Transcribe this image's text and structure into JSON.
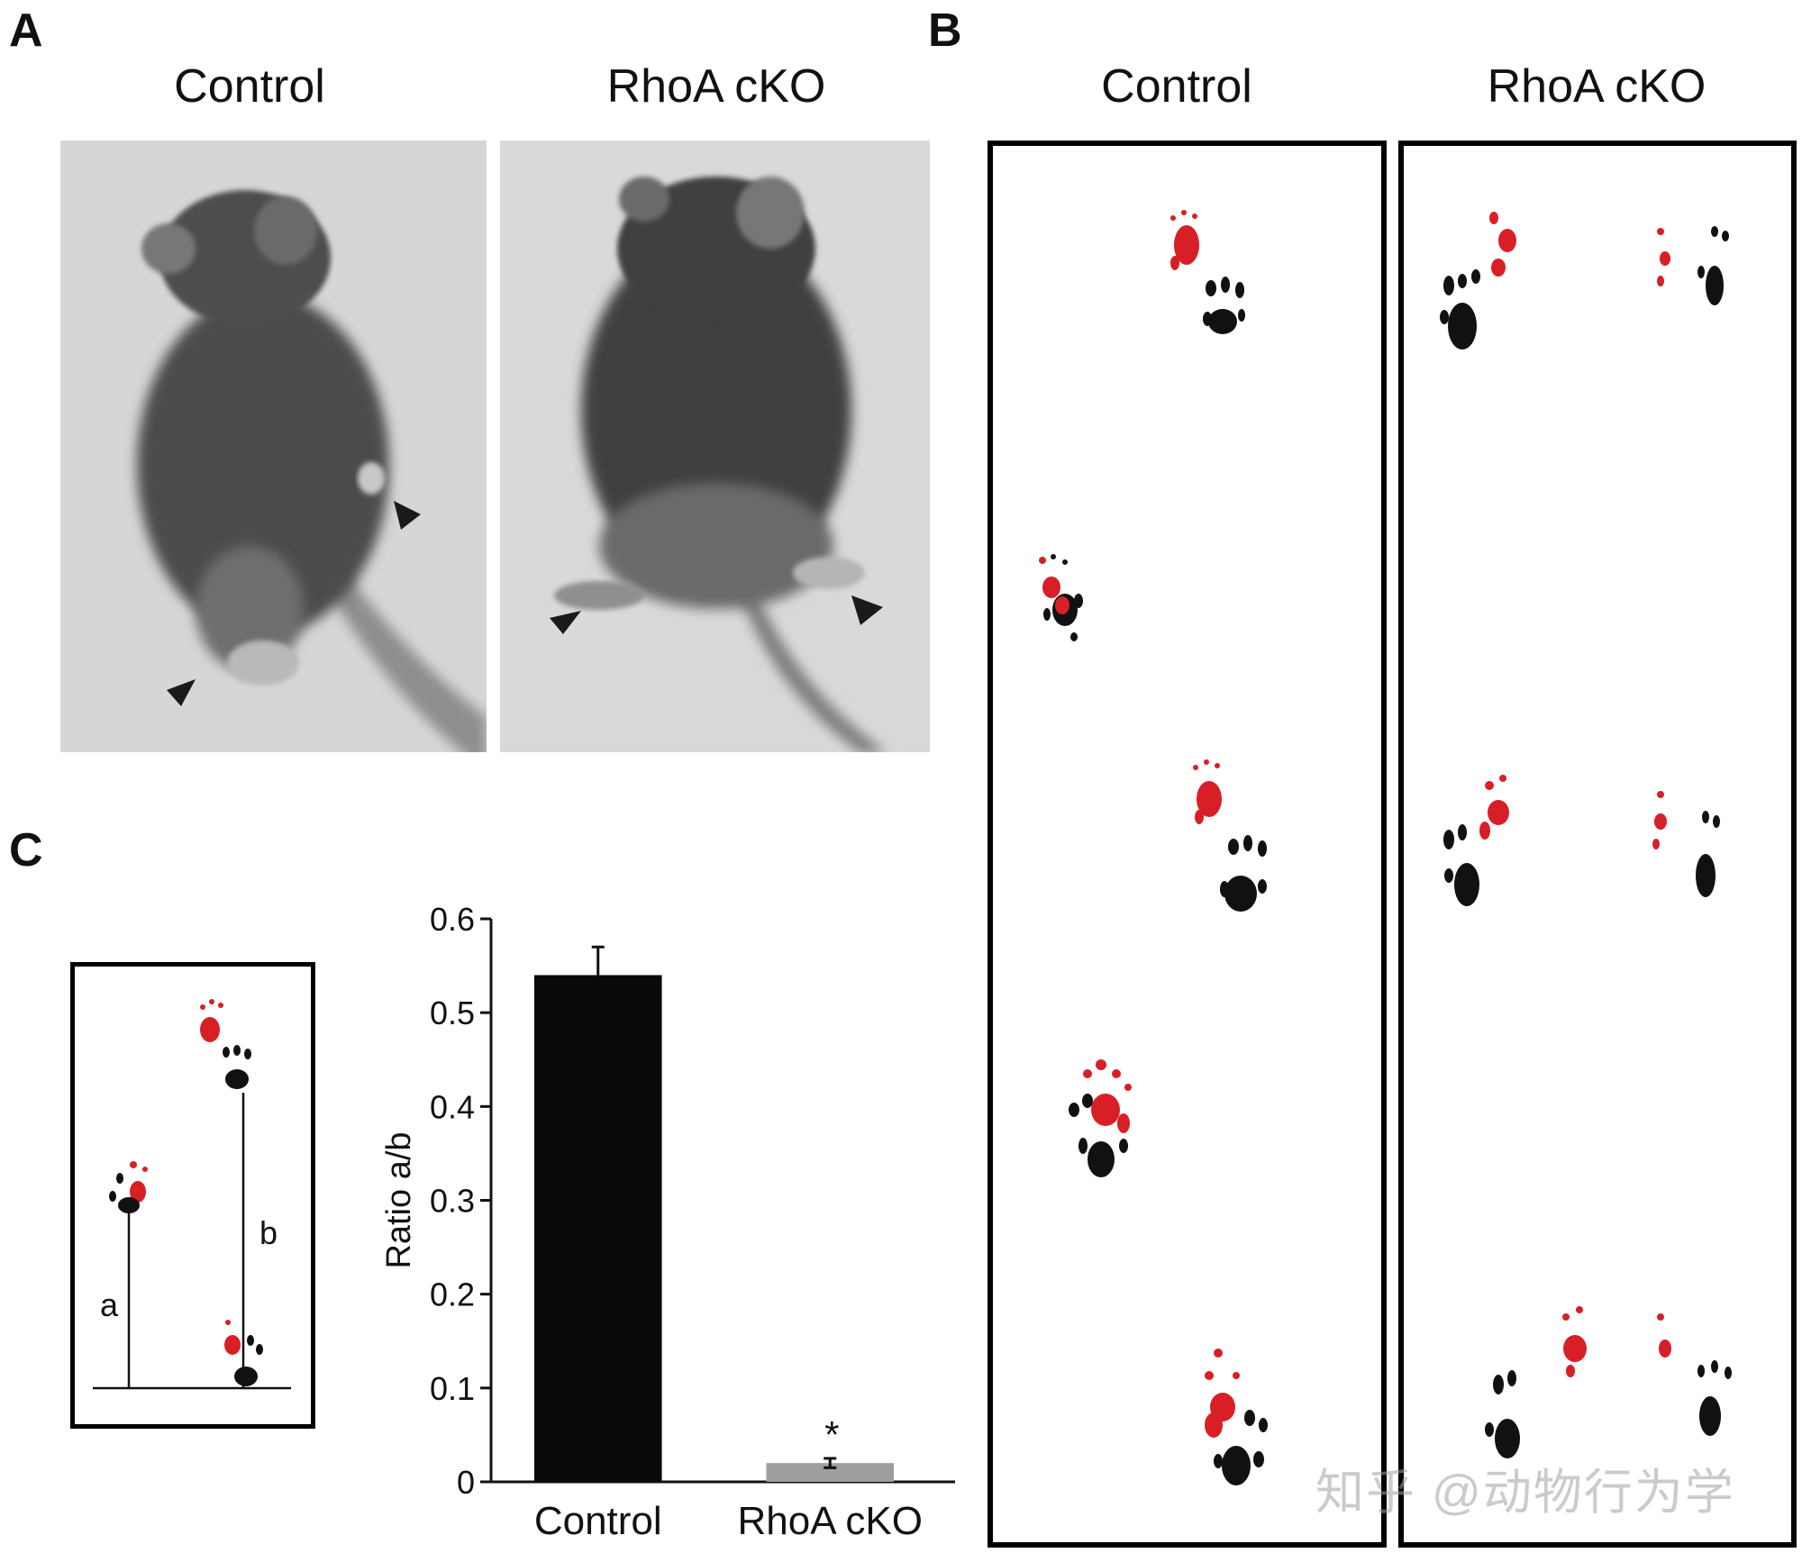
{
  "panels": {
    "A": {
      "letter": "A",
      "photos": [
        {
          "title": "Control"
        },
        {
          "title": "RhoA cKO"
        }
      ]
    },
    "B": {
      "letter": "B",
      "strips": [
        {
          "title": "Control"
        },
        {
          "title": "RhoA cKO"
        }
      ]
    },
    "C": {
      "letter": "C",
      "diagram": {
        "label_a": "a",
        "label_b": "b"
      }
    }
  },
  "chart_data": {
    "type": "bar",
    "categories": [
      "Control",
      "RhoA cKO"
    ],
    "values": [
      0.54,
      0.02
    ],
    "errors": [
      0.03,
      0.005
    ],
    "colors": [
      "#0a0a0a",
      "#9e9e9e"
    ],
    "annotations": [
      {
        "category": "RhoA cKO",
        "text": "*"
      }
    ],
    "ylabel": "Ratio a/b",
    "ylim": [
      0,
      0.6
    ],
    "yticks": [
      "0",
      "0.1",
      "0.2",
      "0.3",
      "0.4",
      "0.5",
      "0.6"
    ],
    "grid": false
  },
  "watermark": "知乎 @动物行为学",
  "colors": {
    "ink_black": "#111111",
    "ink_red": "#d81f26"
  }
}
